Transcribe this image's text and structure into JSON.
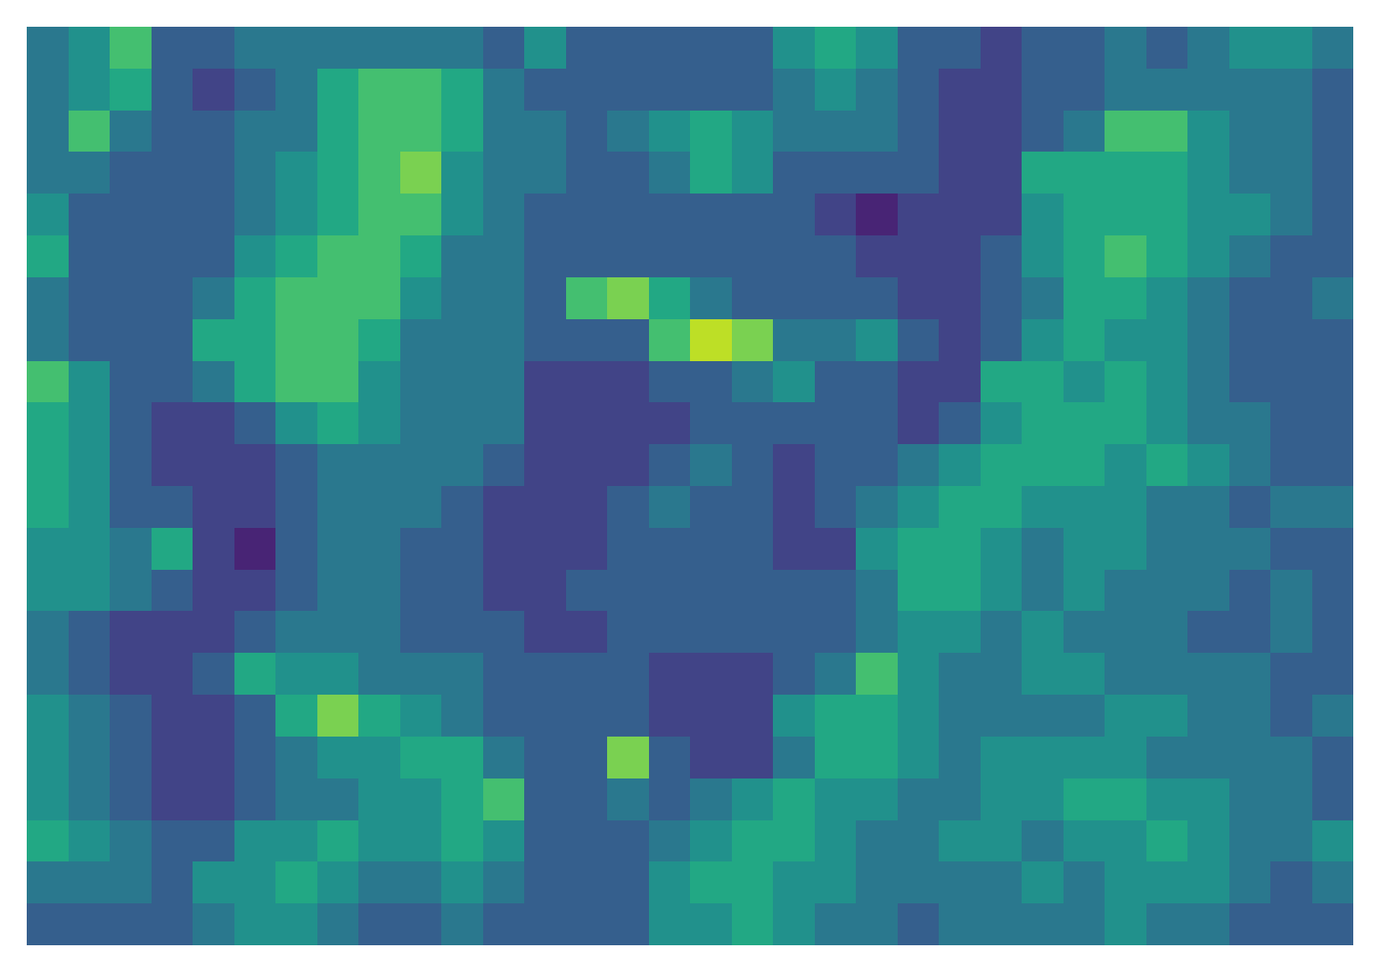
{
  "chart_data": {
    "type": "heatmap",
    "tick_labels": false,
    "color_range": [
      0,
      10
    ],
    "cells": [
      [
        4,
        5,
        7,
        3,
        3,
        4,
        4,
        4,
        4,
        4,
        4,
        3,
        5,
        3,
        3,
        3,
        3,
        3,
        5,
        6,
        5,
        3,
        3,
        2,
        3,
        3,
        4,
        3,
        4,
        5,
        5,
        4
      ],
      [
        4,
        5,
        6,
        3,
        2,
        3,
        4,
        6,
        7,
        7,
        6,
        4,
        3,
        3,
        3,
        3,
        3,
        3,
        4,
        5,
        4,
        3,
        2,
        2,
        3,
        3,
        4,
        4,
        4,
        4,
        4,
        3
      ],
      [
        4,
        7,
        4,
        3,
        3,
        4,
        4,
        6,
        7,
        7,
        6,
        4,
        4,
        3,
        4,
        5,
        6,
        5,
        4,
        4,
        4,
        3,
        2,
        2,
        3,
        4,
        7,
        7,
        5,
        4,
        4,
        3
      ],
      [
        4,
        4,
        3,
        3,
        3,
        4,
        5,
        6,
        7,
        8,
        5,
        4,
        4,
        3,
        3,
        4,
        6,
        5,
        3,
        3,
        3,
        3,
        2,
        2,
        6,
        6,
        6,
        6,
        5,
        4,
        4,
        3
      ],
      [
        5,
        3,
        3,
        3,
        3,
        4,
        5,
        6,
        7,
        7,
        5,
        4,
        3,
        3,
        3,
        3,
        3,
        3,
        3,
        2,
        1,
        2,
        2,
        2,
        5,
        6,
        6,
        6,
        5,
        5,
        4,
        3
      ],
      [
        6,
        3,
        3,
        3,
        3,
        5,
        6,
        7,
        7,
        6,
        4,
        4,
        3,
        3,
        3,
        3,
        3,
        3,
        3,
        3,
        2,
        2,
        2,
        3,
        5,
        6,
        7,
        6,
        5,
        4,
        3,
        3
      ],
      [
        4,
        3,
        3,
        3,
        4,
        6,
        7,
        7,
        7,
        5,
        4,
        4,
        3,
        7,
        8,
        6,
        4,
        3,
        3,
        3,
        3,
        2,
        2,
        3,
        4,
        6,
        6,
        5,
        4,
        3,
        3,
        4
      ],
      [
        4,
        3,
        3,
        3,
        6,
        6,
        7,
        7,
        6,
        4,
        4,
        4,
        3,
        3,
        3,
        7,
        9,
        8,
        4,
        4,
        5,
        3,
        2,
        3,
        5,
        6,
        5,
        5,
        4,
        3,
        3,
        3
      ],
      [
        7,
        5,
        3,
        3,
        4,
        6,
        7,
        7,
        5,
        4,
        4,
        4,
        2,
        2,
        2,
        3,
        3,
        4,
        5,
        3,
        3,
        2,
        2,
        6,
        6,
        5,
        6,
        5,
        4,
        3,
        3,
        3
      ],
      [
        6,
        5,
        3,
        2,
        2,
        3,
        5,
        6,
        5,
        4,
        4,
        4,
        2,
        2,
        2,
        2,
        3,
        3,
        3,
        3,
        3,
        2,
        3,
        5,
        6,
        6,
        6,
        5,
        4,
        4,
        3,
        3
      ],
      [
        6,
        5,
        3,
        2,
        2,
        2,
        3,
        4,
        4,
        4,
        4,
        3,
        2,
        2,
        2,
        3,
        4,
        3,
        2,
        3,
        3,
        4,
        5,
        6,
        6,
        6,
        5,
        6,
        5,
        4,
        3,
        3
      ],
      [
        6,
        5,
        3,
        3,
        2,
        2,
        3,
        4,
        4,
        4,
        3,
        2,
        2,
        2,
        3,
        4,
        3,
        3,
        2,
        3,
        4,
        5,
        6,
        6,
        5,
        5,
        5,
        4,
        4,
        3,
        4,
        4
      ],
      [
        5,
        5,
        4,
        6,
        2,
        1,
        3,
        4,
        4,
        3,
        3,
        2,
        2,
        2,
        3,
        3,
        3,
        3,
        2,
        2,
        5,
        6,
        6,
        5,
        4,
        5,
        5,
        4,
        4,
        4,
        3,
        3
      ],
      [
        5,
        5,
        4,
        3,
        2,
        2,
        3,
        4,
        4,
        3,
        3,
        2,
        2,
        3,
        3,
        3,
        3,
        3,
        3,
        3,
        4,
        6,
        6,
        5,
        4,
        5,
        4,
        4,
        4,
        3,
        4,
        3
      ],
      [
        4,
        3,
        2,
        2,
        2,
        3,
        4,
        4,
        4,
        3,
        3,
        3,
        2,
        2,
        3,
        3,
        3,
        3,
        3,
        3,
        4,
        5,
        5,
        4,
        5,
        4,
        4,
        4,
        3,
        3,
        4,
        3
      ],
      [
        4,
        3,
        2,
        2,
        3,
        6,
        5,
        5,
        4,
        4,
        4,
        3,
        3,
        3,
        3,
        2,
        2,
        2,
        3,
        4,
        7,
        5,
        4,
        4,
        5,
        5,
        4,
        4,
        4,
        4,
        3,
        3
      ],
      [
        5,
        4,
        3,
        2,
        2,
        3,
        6,
        8,
        6,
        5,
        4,
        3,
        3,
        3,
        3,
        2,
        2,
        2,
        5,
        6,
        6,
        5,
        4,
        4,
        4,
        4,
        5,
        5,
        4,
        4,
        3,
        4
      ],
      [
        5,
        4,
        3,
        2,
        2,
        3,
        4,
        5,
        5,
        6,
        6,
        4,
        3,
        3,
        8,
        3,
        2,
        2,
        4,
        6,
        6,
        5,
        4,
        5,
        5,
        5,
        5,
        4,
        4,
        4,
        4,
        3
      ],
      [
        5,
        4,
        3,
        2,
        2,
        3,
        4,
        4,
        5,
        5,
        6,
        7,
        3,
        3,
        4,
        3,
        4,
        5,
        6,
        5,
        5,
        4,
        4,
        5,
        5,
        6,
        6,
        5,
        5,
        4,
        4,
        3
      ],
      [
        6,
        5,
        4,
        3,
        3,
        5,
        5,
        6,
        5,
        5,
        6,
        5,
        3,
        3,
        3,
        4,
        5,
        6,
        6,
        5,
        4,
        4,
        5,
        5,
        4,
        5,
        5,
        6,
        5,
        4,
        4,
        5
      ],
      [
        4,
        4,
        4,
        3,
        5,
        5,
        6,
        5,
        4,
        4,
        5,
        4,
        3,
        3,
        3,
        5,
        6,
        6,
        5,
        5,
        4,
        4,
        4,
        4,
        5,
        4,
        5,
        5,
        5,
        4,
        3,
        4
      ],
      [
        3,
        3,
        3,
        3,
        4,
        5,
        5,
        4,
        3,
        3,
        4,
        3,
        3,
        3,
        3,
        5,
        5,
        6,
        5,
        4,
        4,
        3,
        4,
        4,
        4,
        4,
        5,
        4,
        4,
        3,
        3,
        3
      ]
    ]
  }
}
